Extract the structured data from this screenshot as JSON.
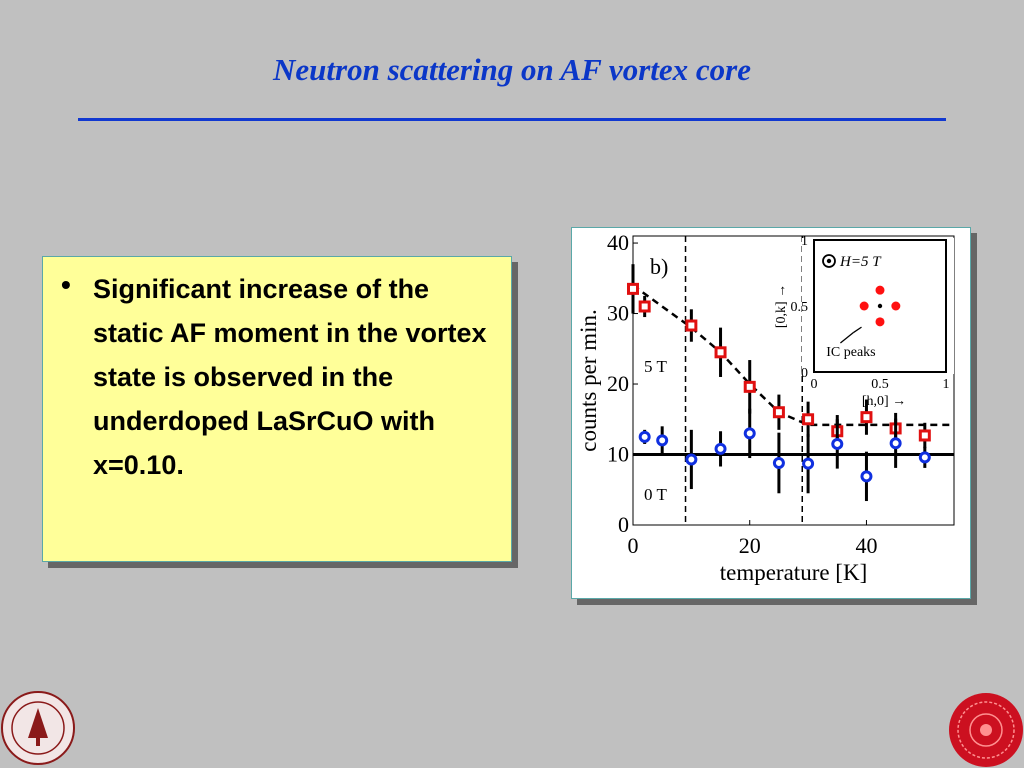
{
  "slide": {
    "title": "Neutron scattering on AF vortex core",
    "bullet_text": "Significant increase of the static AF moment in the vortex state is observed in the underdoped LaSrCuO with x=0.10."
  },
  "colors": {
    "title": "#0b37c8",
    "rule": "#1138d0",
    "textbox_bg": "#ffff99",
    "red_series": "#e01010",
    "blue_series": "#1030e0"
  },
  "icons": {
    "left_logo": "stanford-seal-icon",
    "right_logo": "red-medallion-icon"
  },
  "chart_data": {
    "type": "scatter",
    "panel_label": "b)",
    "xlabel": "temperature [K]",
    "ylabel": "counts per min.",
    "xlim": [
      0,
      55
    ],
    "ylim": [
      0,
      41
    ],
    "xticks": [
      0,
      20,
      40
    ],
    "yticks": [
      0,
      10,
      20,
      30,
      40
    ],
    "vlines": [
      9,
      29
    ],
    "series": [
      {
        "name": "5 T",
        "color": "#e01010",
        "marker": "square",
        "x": [
          0,
          2,
          10,
          15,
          20,
          25,
          30,
          35,
          40,
          45,
          50
        ],
        "y": [
          33.5,
          31,
          28.3,
          24.5,
          19.6,
          16,
          15,
          13.3,
          15.3,
          13.7,
          12.7
        ],
        "err": [
          3.5,
          1.5,
          2.3,
          3.5,
          3.8,
          2.5,
          2.5,
          2.3,
          2.5,
          2.2,
          1.8
        ]
      },
      {
        "name": "0 T",
        "color": "#1030e0",
        "marker": "circle",
        "x": [
          2,
          5,
          10,
          15,
          20,
          25,
          30,
          35,
          40,
          45,
          50
        ],
        "y": [
          12.5,
          12,
          9.3,
          10.8,
          13,
          8.8,
          8.7,
          11.5,
          6.9,
          11.6,
          9.6
        ],
        "err": [
          1,
          2,
          4.2,
          2.5,
          3.5,
          4.3,
          4.2,
          3.5,
          3.5,
          3.5,
          1.5
        ]
      }
    ],
    "fits": [
      {
        "name": "5 T",
        "x": [
          0,
          10,
          15,
          20,
          25,
          30,
          55
        ],
        "y": [
          34,
          28,
          24.5,
          20,
          16,
          14.2,
          14.2
        ]
      },
      {
        "name": "0 T",
        "x": [
          0,
          55
        ],
        "y": [
          10,
          10
        ]
      }
    ],
    "inset": {
      "legend_label": "H=5 T",
      "xlabel": "[h,0] →",
      "ylabel": "[0,k] →",
      "annotation": "IC peaks",
      "xticks": [
        "0",
        "0.5",
        "1"
      ],
      "yticks": [
        "0",
        "0.5",
        "1"
      ],
      "peaks": [
        [
          0.5,
          0.62
        ],
        [
          0.38,
          0.5
        ],
        [
          0.62,
          0.5
        ],
        [
          0.5,
          0.38
        ]
      ],
      "center": [
        0.5,
        0.5
      ]
    }
  }
}
